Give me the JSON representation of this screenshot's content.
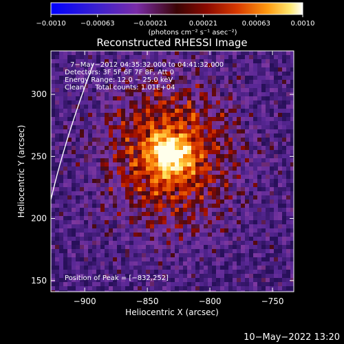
{
  "chart_data": {
    "type": "heatmap",
    "title": "Reconstructed RHESSI Image",
    "xlabel": "Heliocentric X (arcsec)",
    "ylabel": "Heliocentric Y (arcsec)",
    "xlim": [
      -927,
      -733
    ],
    "ylim": [
      141,
      335
    ],
    "x_ticks": [
      "−900",
      "−850",
      "−800",
      "−750"
    ],
    "x_tick_values": [
      -900,
      -850,
      -800,
      -750
    ],
    "y_ticks": [
      "300",
      "250",
      "200",
      "150"
    ],
    "y_tick_values": [
      300,
      250,
      200,
      150
    ],
    "colorbar": {
      "range": [
        -0.001,
        0.001
      ],
      "tick_labels": [
        "−0.0010",
        "−0.00063",
        "−0.00021",
        "0.00021",
        "0.00063",
        "0.0010"
      ],
      "tick_values": [
        -0.001,
        -0.00063,
        -0.00021,
        0.00021,
        0.00063,
        0.001
      ],
      "unit_label": "(photons cm⁻² s⁻¹ asec⁻²)"
    },
    "annotations": [
      "7−May−2012 04:35:32.000 to 04:41:32.000",
      "Detectors: 3F 5F 6F 7F 8F, Att 0",
      "Energy Range: 12.0 − 25.0 keV",
      "Clean     Total counts: 1.01E+04"
    ],
    "peak_text": "Position of Peak = [−832,252]",
    "peak": {
      "x": -832,
      "y": 252
    },
    "peak_value": 0.001
  },
  "footer": {
    "timestamp": "10−May−2022 13:20"
  }
}
